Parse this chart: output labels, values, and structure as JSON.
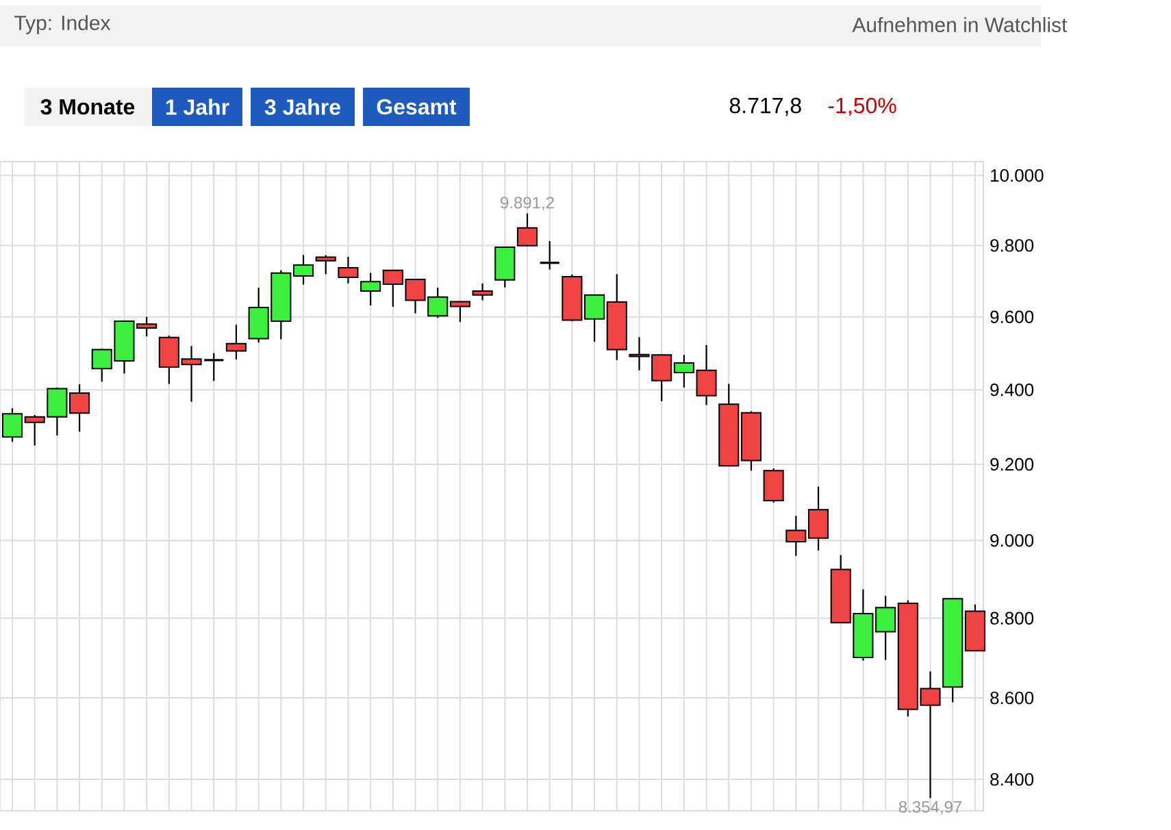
{
  "chart_data": {
    "type": "candlestick",
    "annotations": [
      "Typ: Index",
      "Aufnehmen in Watchlist",
      "3 Monate",
      "1 Jahr",
      "3 Jahre",
      "Gesamt",
      "8.717,8",
      "-1,50%",
      {
        "text": "9.891,2",
        "y": 9891.2
      },
      {
        "text": "8.354,97",
        "y": 8354.97
      }
    ],
    "categories": [
      null,
      null,
      null,
      null,
      null,
      null,
      null,
      null,
      null,
      null,
      null,
      null,
      null,
      null,
      null,
      null,
      null,
      null,
      null,
      null,
      null,
      null,
      null,
      null,
      null,
      null,
      null,
      null,
      null,
      null,
      null,
      null,
      null,
      null,
      null,
      null,
      null,
      null,
      null,
      null,
      null,
      null,
      null,
      null
    ],
    "ohlc": [
      [
        9273,
        9350,
        9260,
        9335
      ],
      [
        9327,
        9332,
        9250,
        9312
      ],
      [
        9327,
        9406,
        9277,
        9403
      ],
      [
        9391,
        9415,
        9287,
        9337
      ],
      [
        9458,
        9512,
        9422,
        9510
      ],
      [
        9479,
        9590,
        9444,
        9588
      ],
      [
        9580,
        9600,
        9546,
        9569
      ],
      [
        9543,
        9548,
        9416,
        9462
      ],
      [
        9484,
        9519,
        9368,
        9469
      ],
      [
        9481,
        9500,
        9424,
        9481
      ],
      [
        9526,
        9578,
        9483,
        9506
      ],
      [
        9540,
        9681,
        9529,
        9626
      ],
      [
        9588,
        9730,
        9538,
        9722
      ],
      [
        9714,
        9773,
        9690,
        9745
      ],
      [
        9767,
        9773,
        9719,
        9757
      ],
      [
        9737,
        9768,
        9693,
        9710
      ],
      [
        9672,
        9723,
        9632,
        9698
      ],
      [
        9730,
        9730,
        9628,
        9691
      ],
      [
        9704,
        9704,
        9610,
        9646
      ],
      [
        9603,
        9681,
        9597,
        9655
      ],
      [
        9642,
        9642,
        9586,
        9629
      ],
      [
        9672,
        9693,
        9646,
        9661
      ],
      [
        9703,
        9797,
        9682,
        9795
      ],
      [
        9850,
        9891.2,
        9797,
        9799
      ],
      [
        9751,
        9812,
        9732,
        9751
      ],
      [
        9712,
        9718,
        9588,
        9591
      ],
      [
        9594,
        9661,
        9531,
        9661
      ],
      [
        9641,
        9719,
        9481,
        9510
      ],
      [
        9496,
        9544,
        9453,
        9491
      ],
      [
        9495,
        9497,
        9369,
        9425
      ],
      [
        9447,
        9495,
        9406,
        9473
      ],
      [
        9453,
        9522,
        9359,
        9384
      ],
      [
        9361,
        9416,
        9196,
        9196
      ],
      [
        9338,
        9342,
        9183,
        9210
      ],
      [
        9183,
        9189,
        9099,
        9104
      ],
      [
        9026,
        9064,
        8960,
        8997
      ],
      [
        9080,
        9141,
        8974,
        9006
      ],
      [
        8925,
        8962,
        8789,
        8789
      ],
      [
        8701,
        8874,
        8693,
        8812
      ],
      [
        8766,
        8857,
        8695,
        8827
      ],
      [
        8838,
        8846,
        8554,
        8572
      ],
      [
        8623,
        8666,
        8354.97,
        8582
      ],
      [
        8627,
        8850,
        8589,
        8850
      ],
      [
        8818,
        8835,
        8717.8,
        8717.8
      ]
    ],
    "colors": [
      "#3ef03e",
      "#f04343",
      "#3ef03e",
      "#f04343",
      "#3ef03e",
      "#3ef03e",
      "#f04343",
      "#f04343",
      "#f04343",
      "#000000",
      "#f04343",
      "#3ef03e",
      "#3ef03e",
      "#3ef03e",
      "#f04343",
      "#f04343",
      "#3ef03e",
      "#f04343",
      "#f04343",
      "#3ef03e",
      "#f04343",
      "#f04343",
      "#3ef03e",
      "#f04343",
      "#000000",
      "#f04343",
      "#3ef03e",
      "#f04343",
      "#f04343",
      "#f04343",
      "#3ef03e",
      "#f04343",
      "#f04343",
      "#f04343",
      "#f04343",
      "#f04343",
      "#f04343",
      "#f04343",
      "#3ef03e",
      "#3ef03e",
      "#f04343",
      "#f04343",
      "#3ef03e",
      "#f04343"
    ],
    "ylim": [
      8324,
      10040
    ],
    "yticks": [
      {
        "value": 8400,
        "label": "8.400"
      },
      {
        "value": 8600,
        "label": "8.600"
      },
      {
        "value": 8800,
        "label": "8.800"
      },
      {
        "value": 9000,
        "label": "9.000"
      },
      {
        "value": 9200,
        "label": "9.200"
      },
      {
        "value": 9400,
        "label": "9.400"
      },
      {
        "value": 9600,
        "label": "9.600"
      },
      {
        "value": 9800,
        "label": "9.800"
      },
      {
        "value": 10000,
        "label": "10.000"
      }
    ],
    "log": true,
    "grid": true,
    "tick_labels": "y"
  }
}
